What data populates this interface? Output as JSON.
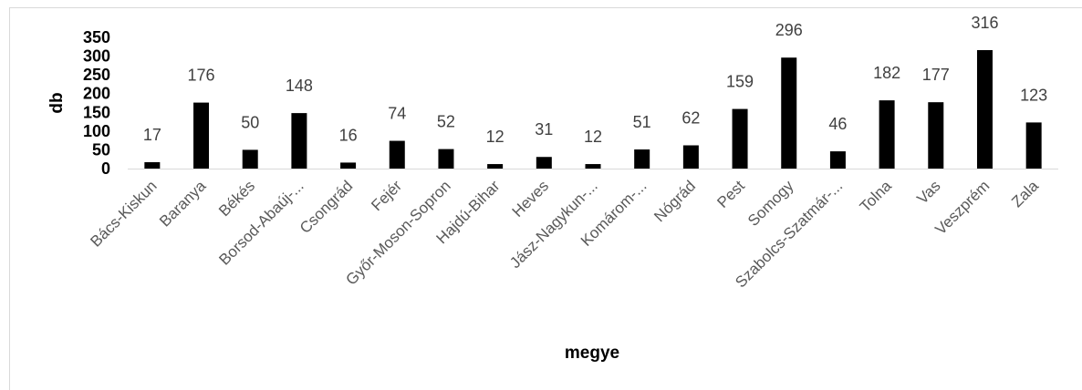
{
  "chart_data": {
    "type": "bar",
    "title": "",
    "xlabel": "megye",
    "ylabel": "db",
    "ylim": [
      0,
      350
    ],
    "yticks": [
      0,
      50,
      100,
      150,
      200,
      250,
      300,
      350
    ],
    "grid": false,
    "categories": [
      "Bács-Kiskun",
      "Baranya",
      "Békés",
      "Borsod-Abaúj-...",
      "Csongrád",
      "Fejér",
      "Győr-Moson-Sopron",
      "Hajdú-Bihar",
      "Heves",
      "Jász-Nagykun-...",
      "Komárom-...",
      "Nógrád",
      "Pest",
      "Somogy",
      "Szabolcs-Szatmár-...",
      "Tolna",
      "Vas",
      "Veszprém",
      "Zala"
    ],
    "values": [
      17,
      176,
      50,
      148,
      16,
      74,
      52,
      12,
      31,
      12,
      51,
      62,
      159,
      296,
      46,
      182,
      177,
      316,
      123
    ],
    "colors": {
      "bar": "#000000",
      "axis": "#d9d9d9",
      "tick_label": "#595959",
      "data_label": "#404040"
    }
  }
}
